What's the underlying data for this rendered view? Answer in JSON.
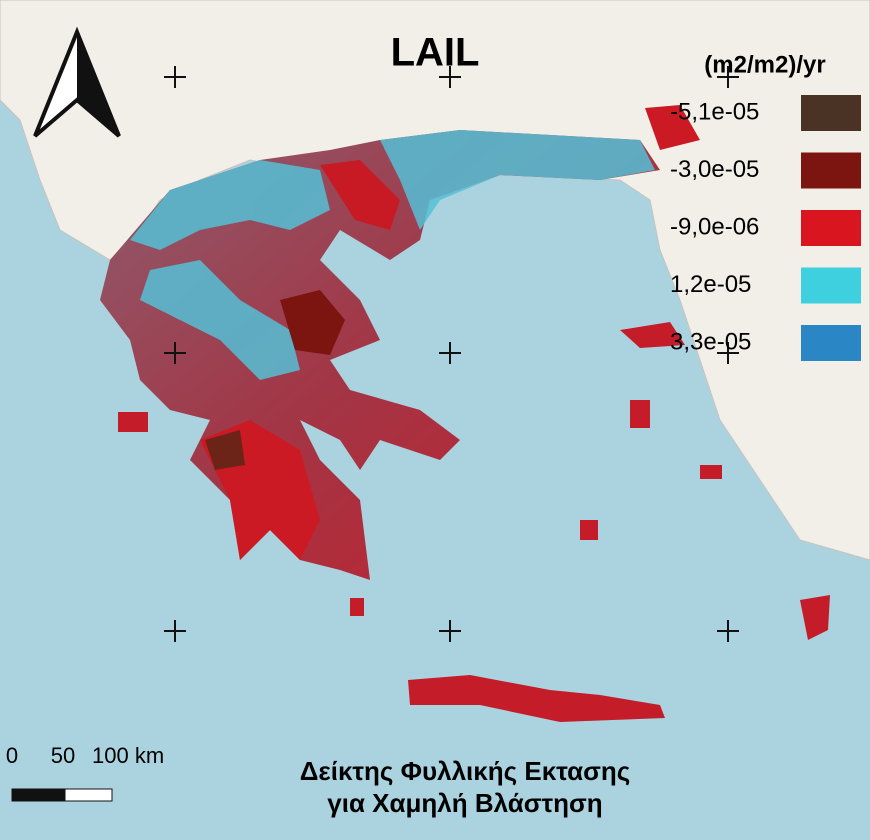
{
  "map": {
    "title": "LAIL",
    "legend": {
      "title": "(m2/m2)/yr",
      "items": [
        {
          "label": "-5,1e-05",
          "color": "#4a3224"
        },
        {
          "label": "-3,0e-05",
          "color": "#7c150f"
        },
        {
          "label": "-9,0e-06",
          "color": "#d9161f"
        },
        {
          "label": "1,2e-05",
          "color": "#3fd0e0"
        },
        {
          "label": "3,3e-05",
          "color": "#2a86c4"
        }
      ]
    },
    "scale_bar": {
      "labels": [
        "0",
        "50",
        "100 km"
      ]
    },
    "caption": [
      "Δείκτης Φυλλικής Εκτασης",
      "για Χαμηλή Βλάστηση"
    ]
  }
}
